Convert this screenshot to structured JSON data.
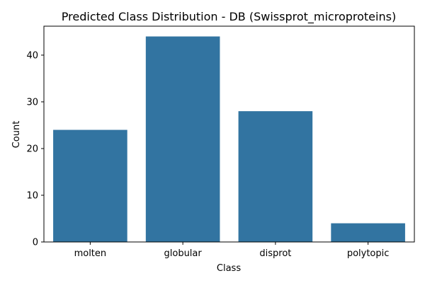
{
  "chart_data": {
    "type": "bar",
    "title": "Predicted Class Distribution - DB (Swissprot_microproteins)",
    "xlabel": "Class",
    "ylabel": "Count",
    "categories": [
      "molten",
      "globular",
      "disprot",
      "polytopic"
    ],
    "values": [
      24,
      44,
      28,
      4
    ],
    "ylim": [
      0,
      46.2
    ],
    "yticks": [
      0,
      10,
      20,
      30,
      40
    ],
    "grid": false,
    "bar_color": "#3274a1"
  }
}
